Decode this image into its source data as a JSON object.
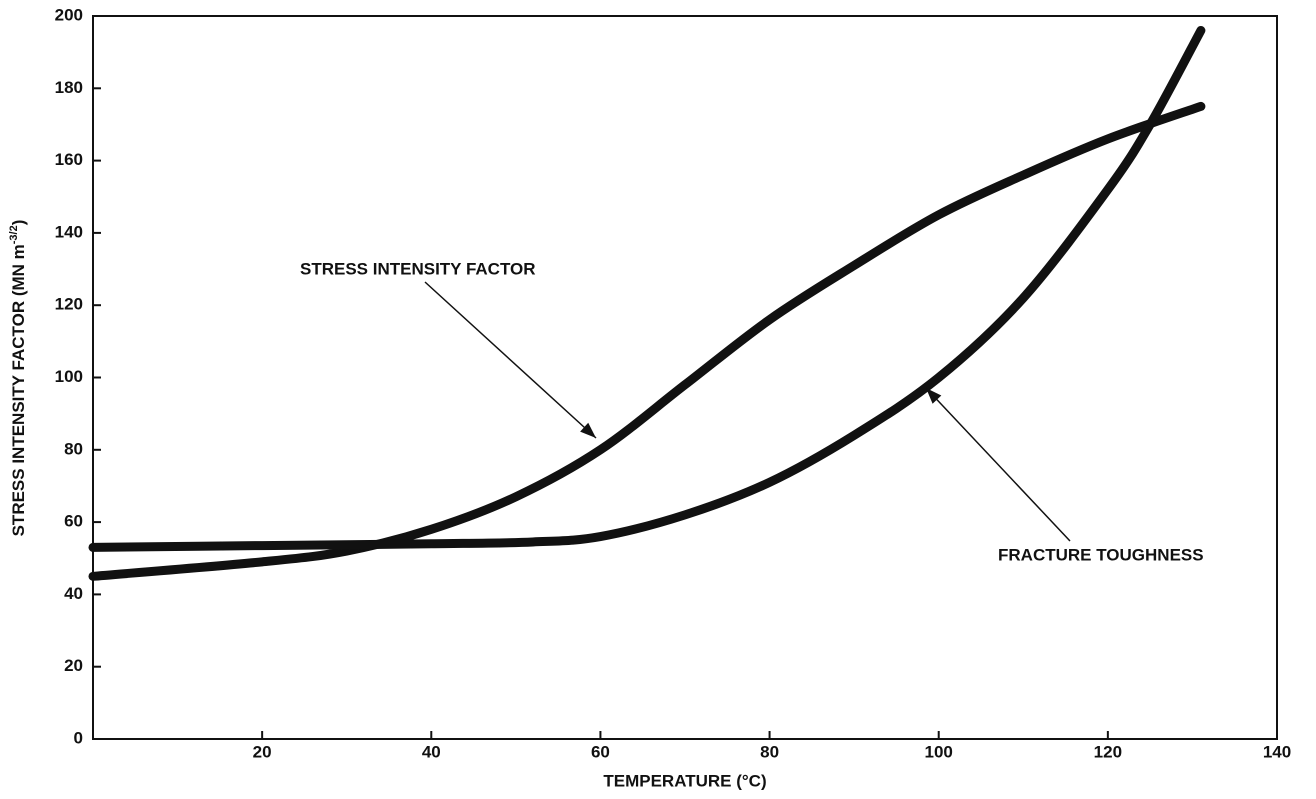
{
  "chart_data": {
    "type": "line",
    "xlabel": "TEMPERATURE (°C)",
    "ylabel": {
      "text": "STRESS INTENSITY FACTOR (MN m",
      "superscript": "-3/2",
      "suffix": ")"
    },
    "xlim": [
      0,
      140
    ],
    "xticks": [
      20,
      40,
      60,
      80,
      100,
      120,
      140
    ],
    "ylim": [
      0,
      200
    ],
    "yticks": [
      0,
      20,
      40,
      60,
      80,
      100,
      120,
      140,
      160,
      180,
      200
    ],
    "series": [
      {
        "name": "STRESS INTENSITY FACTOR",
        "color": "#111111",
        "x": [
          0,
          20,
          30,
          40,
          50,
          60,
          70,
          80,
          90,
          100,
          110,
          120,
          131
        ],
        "values": [
          45,
          49,
          52,
          58,
          67,
          80,
          98,
          116,
          131,
          145,
          156,
          166,
          175
        ]
      },
      {
        "name": "FRACTURE TOUGHNESS",
        "color": "#111111",
        "x": [
          0,
          20,
          40,
          52,
          60,
          70,
          80,
          90,
          100,
          110,
          120,
          125,
          131
        ],
        "values": [
          53,
          53.5,
          54,
          54.5,
          56,
          62,
          71,
          84,
          100,
          122,
          152,
          170,
          196
        ]
      }
    ]
  }
}
